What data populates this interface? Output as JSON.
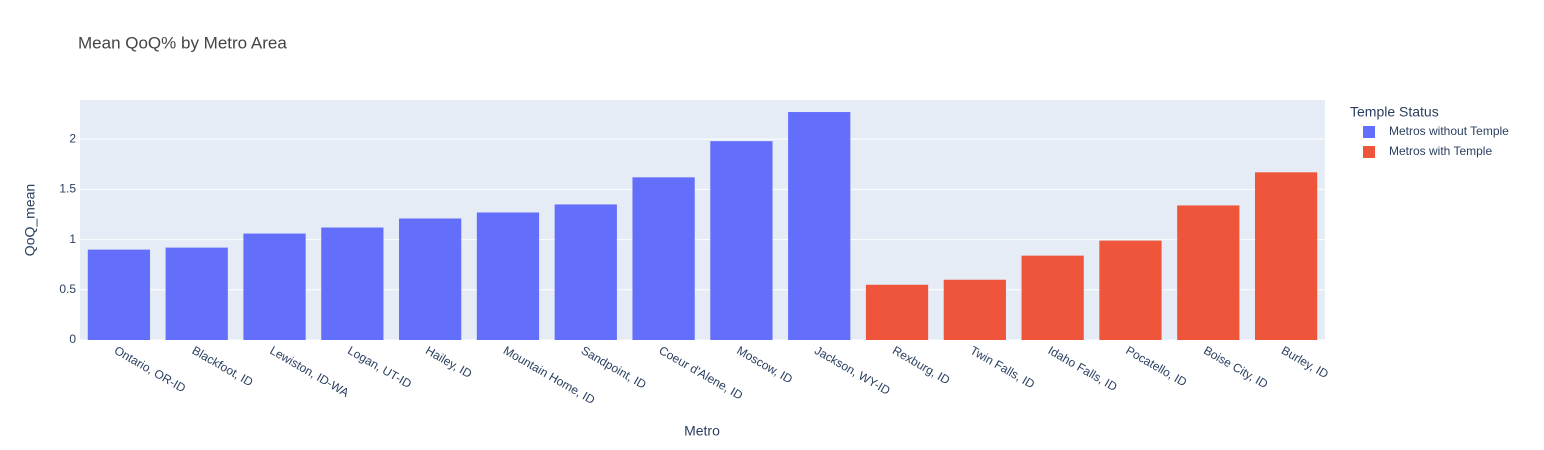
{
  "chart_data": {
    "type": "bar",
    "title": "Mean QoQ% by Metro Area",
    "x_label": "Metro",
    "y_label": "QoQ_mean",
    "legend_title": "Temple Status",
    "categories": [
      "Ontario, OR-ID",
      "Blackfoot, ID",
      "Lewiston, ID-WA",
      "Logan, UT-ID",
      "Hailey, ID",
      "Mountain Home, ID",
      "Sandpoint, ID",
      "Coeur d'Alene, ID",
      "Moscow, ID",
      "Jackson, WY-ID",
      "Rexburg, ID",
      "Twin Falls, ID",
      "Idaho Falls, ID",
      "Pocatello, ID",
      "Boise City, ID",
      "Burley, ID"
    ],
    "series": [
      {
        "name": "Metros without Temple",
        "color": "#636efa",
        "values": [
          0.9,
          0.92,
          1.06,
          1.12,
          1.21,
          1.27,
          1.35,
          1.62,
          1.98,
          2.27,
          null,
          null,
          null,
          null,
          null,
          null
        ]
      },
      {
        "name": "Metros with Temple",
        "color": "#ef553b",
        "values": [
          null,
          null,
          null,
          null,
          null,
          null,
          null,
          null,
          null,
          null,
          0.55,
          0.6,
          0.84,
          0.99,
          1.34,
          1.67
        ]
      }
    ],
    "ylim": [
      0,
      2.39
    ],
    "yticks": [
      0,
      0.5,
      1,
      1.5,
      2
    ],
    "grid": true,
    "legend": "right"
  }
}
